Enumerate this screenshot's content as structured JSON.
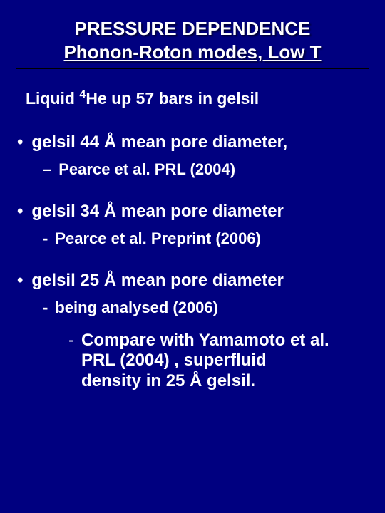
{
  "background_color": "#000080",
  "text_color": "#ffffff",
  "divider_color": "#000000",
  "title": {
    "line1": "PRESSURE DEPENDENCE",
    "line2": "Phonon-Roton modes, Low T",
    "fontsize": 26,
    "fontweight": "bold",
    "align": "center"
  },
  "subtitle": {
    "prefix": "Liquid ",
    "sup": "4",
    "text": "He up 57 bars in gelsil",
    "fontsize": 23
  },
  "bullets": [
    {
      "text": "gelsil 44 Å mean pore diameter,",
      "sub_mark": "–",
      "sub_text": "Pearce et al.  PRL  (2004)"
    },
    {
      "text": "gelsil 34 Å mean pore diameter",
      "sub_mark": "-",
      "sub_text": "Pearce et al. Preprint (2006)"
    },
    {
      "text": "gelsil 25 Å mean pore diameter",
      "sub_mark": "-",
      "sub_text": "being analysed (2006)"
    }
  ],
  "compare": {
    "mark": "-",
    "line1": "Compare with Yamamoto et al.",
    "line2": "PRL (2004) , superfluid",
    "line3": "density in 25 Å gelsil."
  },
  "typography": {
    "font_family": "Arial",
    "bullet_fontsize": 24,
    "sub_fontsize": 22
  }
}
